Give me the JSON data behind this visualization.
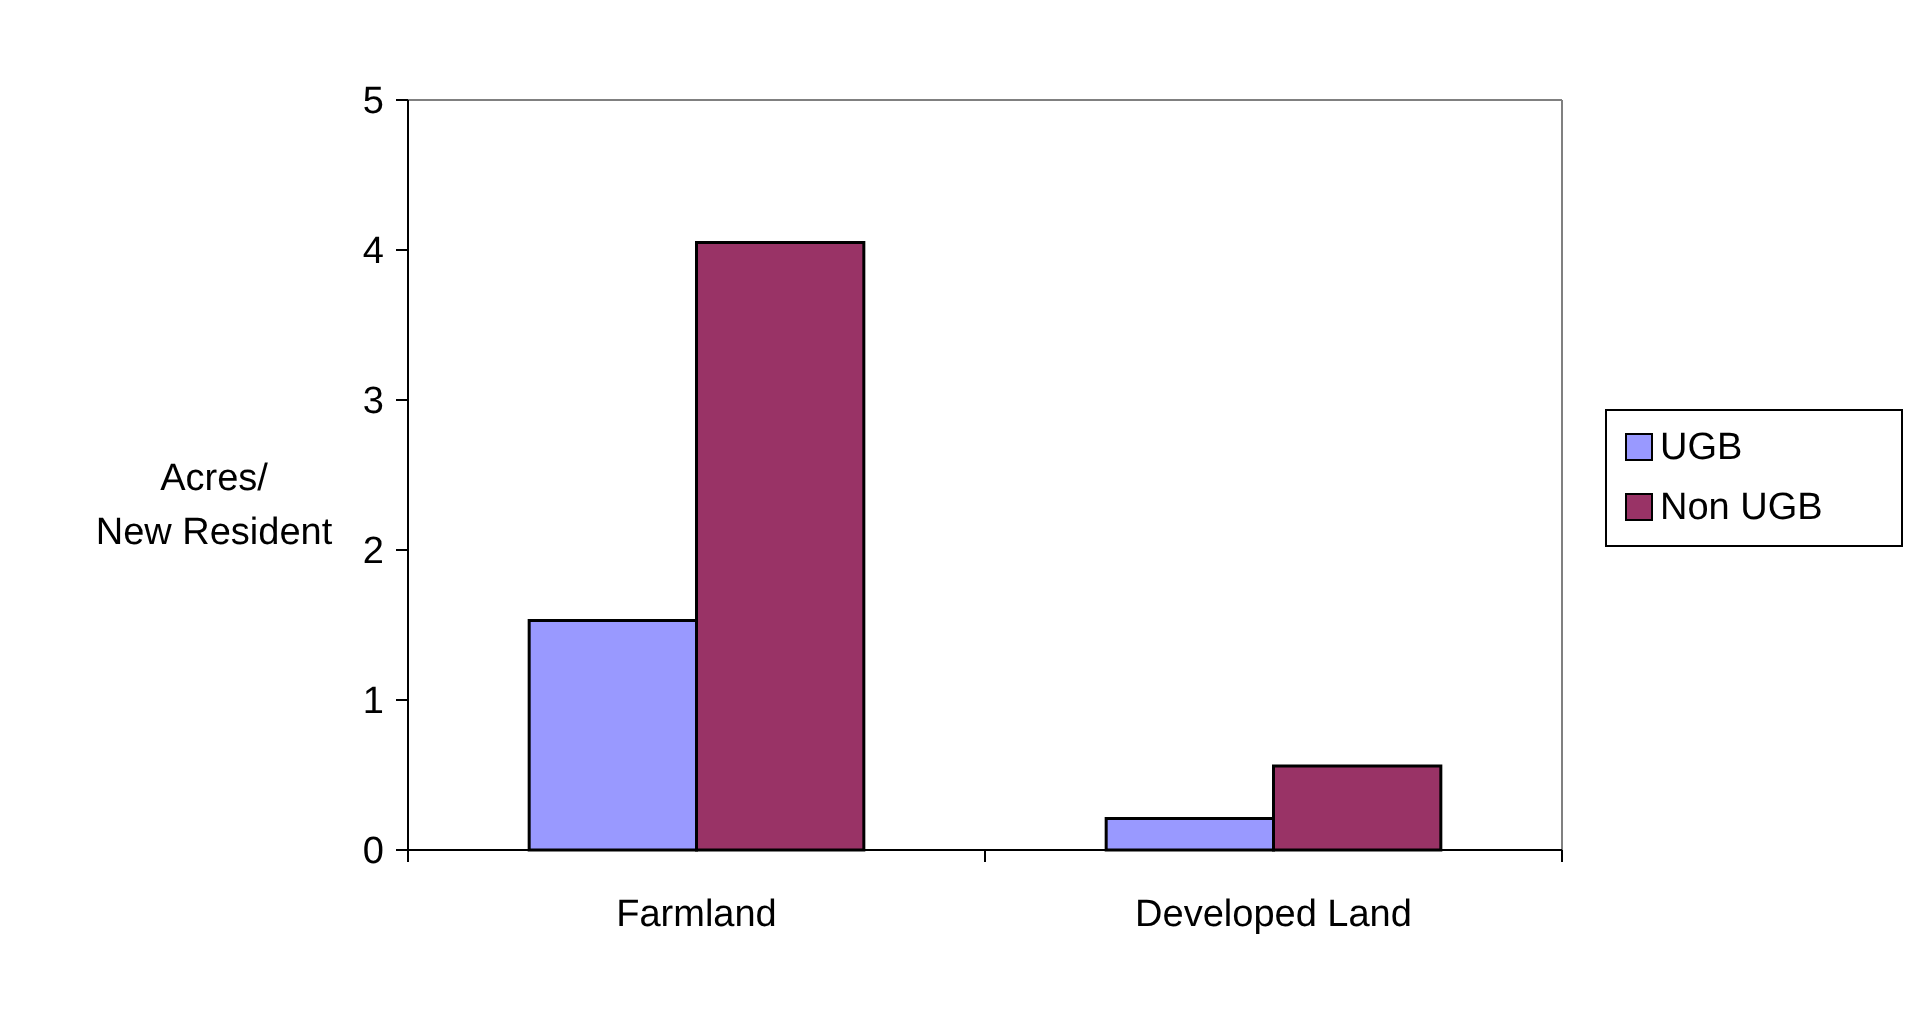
{
  "chart_data": {
    "type": "bar",
    "ylabel": "Acres/New Resident",
    "categories": [
      "Farmland",
      "Developed Land"
    ],
    "series": [
      {
        "name": "UGB",
        "color": "#9999ff",
        "values": [
          1.53,
          0.21
        ]
      },
      {
        "name": "Non UGB",
        "color": "#993366",
        "values": [
          4.05,
          0.56
        ]
      }
    ],
    "ylim": [
      0,
      5
    ],
    "yticks": [
      0,
      1,
      2,
      3,
      4,
      5
    ],
    "grid": false,
    "legend": "right"
  }
}
